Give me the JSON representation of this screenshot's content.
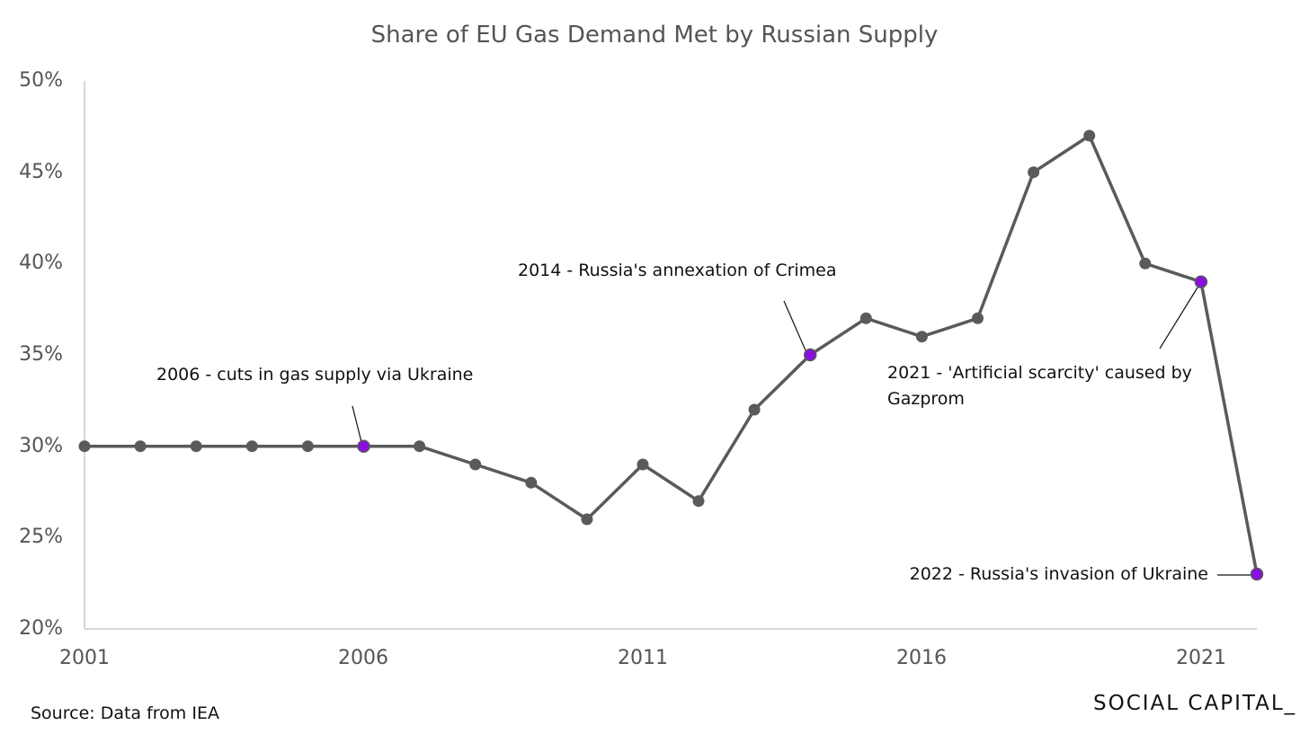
{
  "chart_data": {
    "type": "line",
    "title": "Share of EU Gas Demand Met by Russian Supply",
    "xlabel": "",
    "ylabel": "",
    "x": [
      2001,
      2002,
      2003,
      2004,
      2005,
      2006,
      2007,
      2008,
      2009,
      2010,
      2011,
      2012,
      2013,
      2014,
      2015,
      2016,
      2017,
      2018,
      2019,
      2020,
      2021,
      2022
    ],
    "series": [
      {
        "values": [
          30,
          30,
          30,
          30,
          30,
          30,
          30,
          29,
          28,
          26,
          29,
          27,
          32,
          35,
          37,
          36,
          37,
          45,
          47,
          40,
          39,
          23
        ]
      }
    ],
    "highlight_x": [
      2006,
      2014,
      2021,
      2022
    ],
    "xticks": [
      "2001",
      "2006",
      "2011",
      "2016",
      "2021"
    ],
    "xlim": [
      2001,
      2022
    ],
    "yticks": [
      "20%",
      "25%",
      "30%",
      "35%",
      "40%",
      "45%",
      "50%"
    ],
    "ylim": [
      20,
      50
    ],
    "grid": false,
    "annotations": [
      {
        "x": 2006,
        "lines": [
          "2006 - cuts in gas supply via Ukraine"
        ]
      },
      {
        "x": 2014,
        "lines": [
          "2014 - Russia's annexation of Crimea"
        ]
      },
      {
        "x": 2021,
        "lines": [
          "2021 - 'Artificial scarcity' caused by",
          "Gazprom"
        ]
      },
      {
        "x": 2022,
        "lines": [
          "2022 - Russia's invasion of Ukraine"
        ]
      }
    ],
    "colors": {
      "line": "#5a5a5a",
      "marker": "#5a5a5a",
      "highlight": "#8a10e0",
      "axis": "#cccccc"
    }
  },
  "footer": {
    "source": "Source: Data from IEA",
    "brand": "SOCIAL CAPITAL_"
  }
}
